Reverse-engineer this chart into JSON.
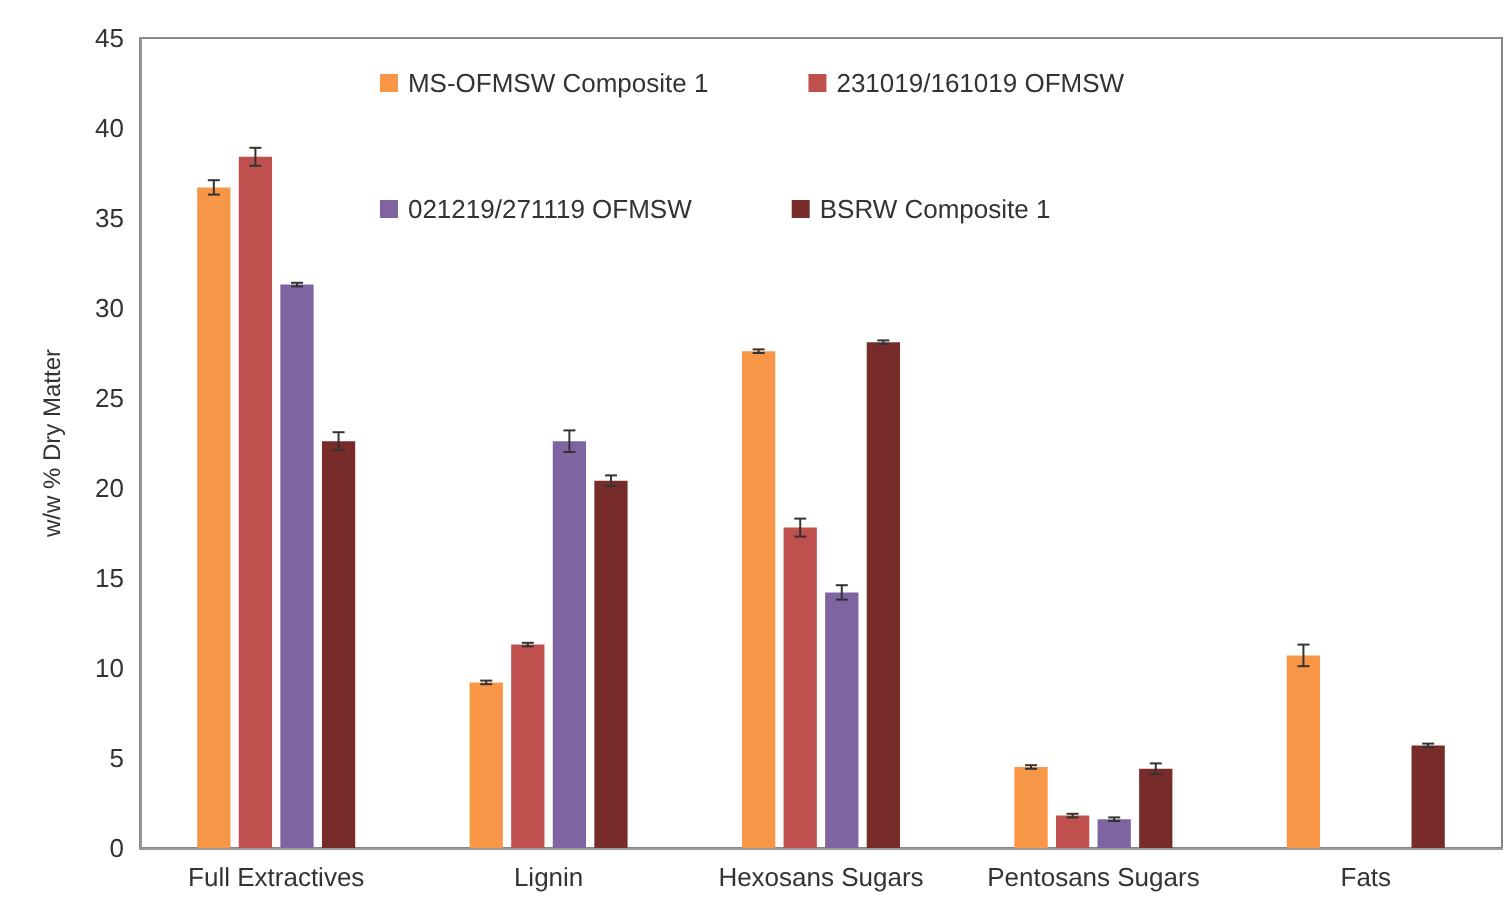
{
  "chart_data": {
    "type": "bar",
    "ylabel": "w/w % Dry Matter",
    "categories": [
      "Full Extractives",
      "Lignin",
      "Hexosans Sugars",
      "Pentosans Sugars",
      "Fats"
    ],
    "series": [
      {
        "name": "MS-OFMSW Composite 1",
        "color": "#f79646",
        "values": [
          36.7,
          9.2,
          27.6,
          4.5,
          10.7
        ],
        "errors": [
          0.4,
          0.1,
          0.1,
          0.1,
          0.6
        ]
      },
      {
        "name": "231019/161019 OFMSW",
        "color": "#c0504d",
        "values": [
          38.4,
          11.3,
          17.8,
          1.8,
          null
        ],
        "errors": [
          0.5,
          0.1,
          0.5,
          0.1,
          null
        ]
      },
      {
        "name": "021219/271119 OFMSW",
        "color": "#8064a2",
        "values": [
          31.3,
          22.6,
          14.2,
          1.6,
          null
        ],
        "errors": [
          0.1,
          0.6,
          0.4,
          0.1,
          null
        ]
      },
      {
        "name": "BSRW Composite 1",
        "color": "#772c2a",
        "values": [
          22.6,
          20.4,
          28.1,
          4.4,
          5.7
        ],
        "errors": [
          0.5,
          0.3,
          0.1,
          0.3,
          0.1
        ]
      }
    ],
    "ylim": [
      0,
      45
    ],
    "yticks": [
      0,
      5,
      10,
      15,
      20,
      25,
      30,
      35,
      40,
      45
    ],
    "grid": false,
    "legend": "top"
  }
}
